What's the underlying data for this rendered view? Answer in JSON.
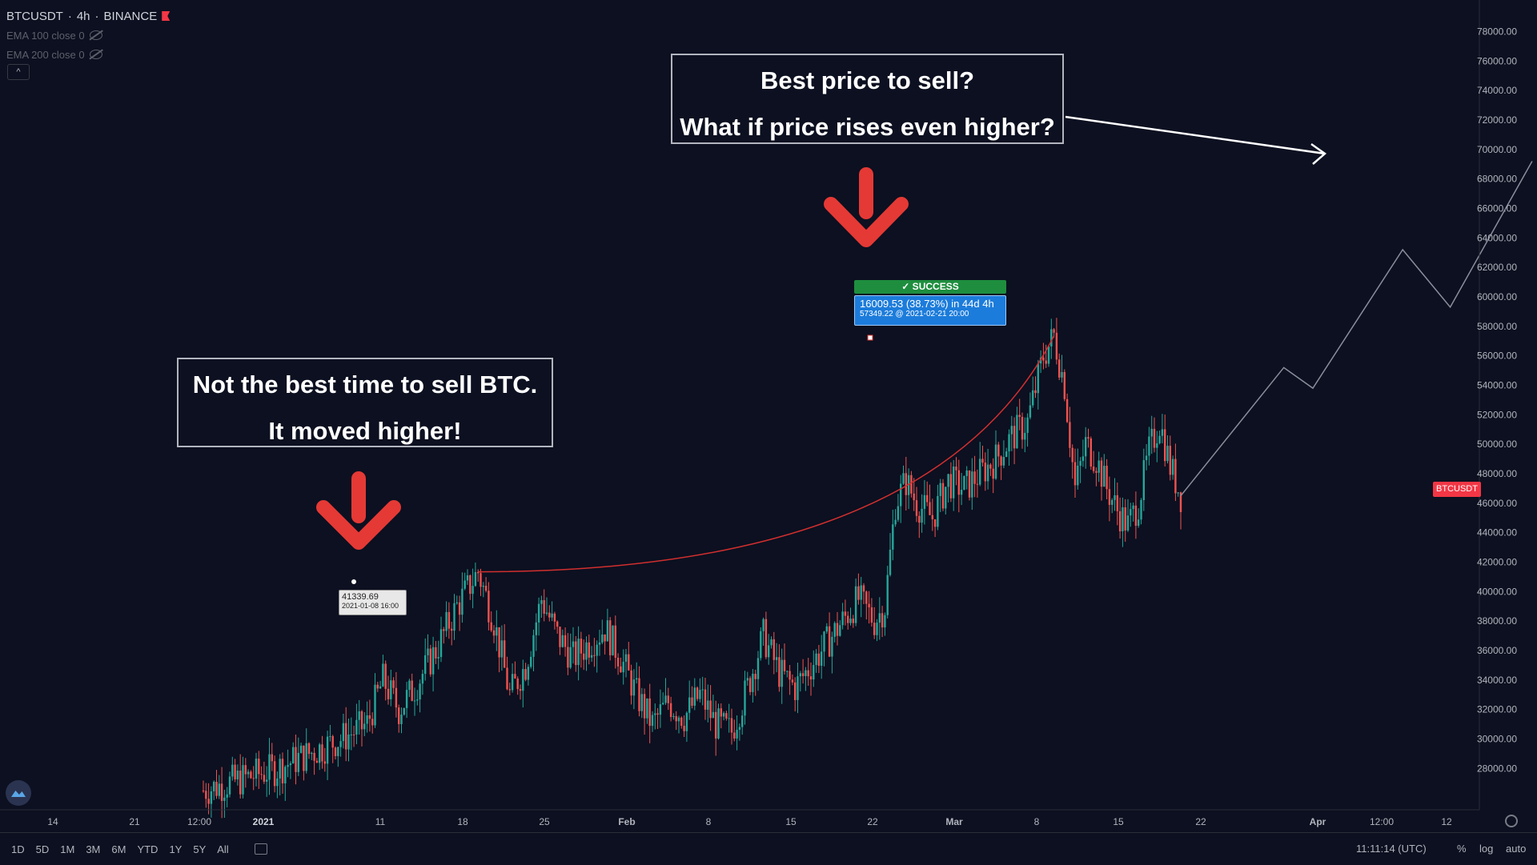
{
  "header": {
    "symbol": "BTCUSDT",
    "interval": "4h",
    "exchange": "BINANCE",
    "ema1": "EMA 100 close 0",
    "ema2": "EMA 200 close 0",
    "collapse": "^"
  },
  "annotations": {
    "top_line1": "Best price to sell?",
    "top_line2": "What if price rises even higher?",
    "left_line1": "Not the best time to sell BTC.",
    "left_line2": "It moved higher!"
  },
  "success_badge": "✓ SUCCESS",
  "info_blue": {
    "line1": "16009.53 (38.73%) in 44d 4h",
    "line2": "57349.22 @ 2021-02-21  20:00"
  },
  "info_white": {
    "line1": "41339.69",
    "line2": "2021-01-08 16:00"
  },
  "price_badge": "BTCUSDT",
  "bottom_toolbar": {
    "ranges": [
      "1D",
      "5D",
      "1M",
      "3M",
      "6M",
      "YTD",
      "1Y",
      "5Y",
      "All"
    ],
    "time": "11:11:14 (UTC)",
    "percent": "%",
    "log": "log",
    "auto": "auto"
  },
  "colors": {
    "background": "#0c1020",
    "up": "#26a69a",
    "down": "#ef5350",
    "arrow": "#e53935",
    "success": "#1e8e3e",
    "info": "#1c7cdb"
  },
  "chart_data": {
    "type": "line",
    "y_axis": {
      "min": 26000,
      "max": 79000,
      "ticks": [
        "78000.00",
        "76000.00",
        "74000.00",
        "72000.00",
        "70000.00",
        "68000.00",
        "66000.00",
        "64000.00",
        "62000.00",
        "60000.00",
        "58000.00",
        "56000.00",
        "54000.00",
        "52000.00",
        "50000.00",
        "48000.00",
        "46000.00",
        "44000.00",
        "42000.00",
        "40000.00",
        "38000.00",
        "36000.00",
        "34000.00",
        "32000.00",
        "30000.00",
        "28000.00"
      ]
    },
    "x_axis": {
      "ticks": [
        "14",
        "21",
        "12:00",
        "2021",
        "11",
        "18",
        "25",
        "Feb",
        "8",
        "15",
        "22",
        "Mar",
        "8",
        "15",
        "22",
        "Apr",
        "12:00",
        "12"
      ]
    },
    "price_series": [
      {
        "x": 0,
        "y": 26500
      },
      {
        "x": 28,
        "y": 28000
      },
      {
        "x": 40,
        "y": 29000
      },
      {
        "x": 52,
        "y": 30000
      },
      {
        "x": 62,
        "y": 31000
      },
      {
        "x": 68,
        "y": 34000
      },
      {
        "x": 74,
        "y": 32000
      },
      {
        "x": 80,
        "y": 33500
      },
      {
        "x": 88,
        "y": 36000
      },
      {
        "x": 96,
        "y": 39000
      },
      {
        "x": 104,
        "y": 41339.69
      },
      {
        "x": 110,
        "y": 38000
      },
      {
        "x": 116,
        "y": 33000
      },
      {
        "x": 122,
        "y": 35000
      },
      {
        "x": 128,
        "y": 39500
      },
      {
        "x": 134,
        "y": 37000
      },
      {
        "x": 140,
        "y": 35500
      },
      {
        "x": 146,
        "y": 36500
      },
      {
        "x": 152,
        "y": 37500
      },
      {
        "x": 158,
        "y": 35500
      },
      {
        "x": 164,
        "y": 33000
      },
      {
        "x": 170,
        "y": 31000
      },
      {
        "x": 176,
        "y": 32500
      },
      {
        "x": 182,
        "y": 31500
      },
      {
        "x": 188,
        "y": 33000
      },
      {
        "x": 194,
        "y": 31000
      },
      {
        "x": 200,
        "y": 30500
      },
      {
        "x": 206,
        "y": 33500
      },
      {
        "x": 212,
        "y": 37000
      },
      {
        "x": 218,
        "y": 34500
      },
      {
        "x": 224,
        "y": 33500
      },
      {
        "x": 230,
        "y": 35000
      },
      {
        "x": 236,
        "y": 36500
      },
      {
        "x": 242,
        "y": 38000
      },
      {
        "x": 248,
        "y": 39500
      },
      {
        "x": 254,
        "y": 38000
      },
      {
        "x": 258,
        "y": 39000
      },
      {
        "x": 262,
        "y": 46000
      },
      {
        "x": 266,
        "y": 47500
      },
      {
        "x": 270,
        "y": 46000
      },
      {
        "x": 276,
        "y": 45000
      },
      {
        "x": 282,
        "y": 47500
      },
      {
        "x": 288,
        "y": 47000
      },
      {
        "x": 294,
        "y": 48000
      },
      {
        "x": 300,
        "y": 49000
      },
      {
        "x": 306,
        "y": 50500
      },
      {
        "x": 312,
        "y": 51500
      },
      {
        "x": 318,
        "y": 56000
      },
      {
        "x": 322,
        "y": 57349.22
      },
      {
        "x": 326,
        "y": 54000
      },
      {
        "x": 330,
        "y": 47000
      },
      {
        "x": 334,
        "y": 50000
      },
      {
        "x": 338,
        "y": 49000
      },
      {
        "x": 342,
        "y": 47000
      },
      {
        "x": 346,
        "y": 45500
      },
      {
        "x": 350,
        "y": 44500
      },
      {
        "x": 354,
        "y": 46000
      },
      {
        "x": 358,
        "y": 49500
      },
      {
        "x": 362,
        "y": 51500
      },
      {
        "x": 366,
        "y": 48500
      },
      {
        "x": 370,
        "y": 46500
      }
    ],
    "projection_series": [
      {
        "x": 370,
        "y": 46500
      },
      {
        "x": 409,
        "y": 55200
      },
      {
        "x": 420,
        "y": 53800
      },
      {
        "x": 454,
        "y": 63200
      },
      {
        "x": 472,
        "y": 59300
      },
      {
        "x": 503,
        "y": 69200
      }
    ],
    "ref_points": {
      "start": {
        "x": 104,
        "y": 41339.69
      },
      "end": {
        "x": 322,
        "y": 57349.22
      }
    }
  }
}
